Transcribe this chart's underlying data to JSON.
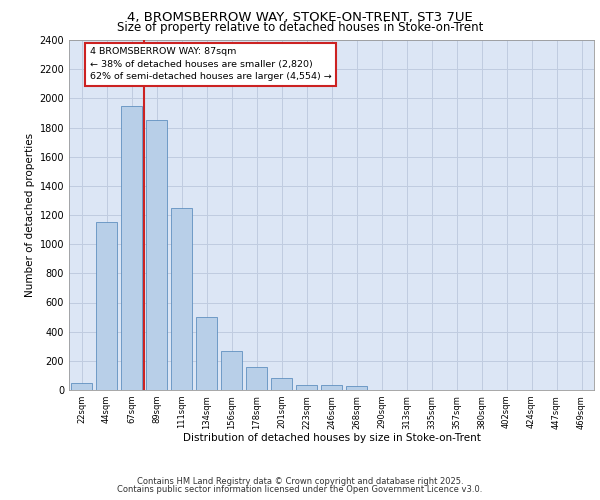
{
  "title_line1": "4, BROMSBERROW WAY, STOKE-ON-TRENT, ST3 7UE",
  "title_line2": "Size of property relative to detached houses in Stoke-on-Trent",
  "xlabel": "Distribution of detached houses by size in Stoke-on-Trent",
  "ylabel": "Number of detached properties",
  "categories": [
    "22sqm",
    "44sqm",
    "67sqm",
    "89sqm",
    "111sqm",
    "134sqm",
    "156sqm",
    "178sqm",
    "201sqm",
    "223sqm",
    "246sqm",
    "268sqm",
    "290sqm",
    "313sqm",
    "335sqm",
    "357sqm",
    "380sqm",
    "402sqm",
    "424sqm",
    "447sqm",
    "469sqm"
  ],
  "values": [
    50,
    1150,
    1950,
    1850,
    1250,
    500,
    270,
    160,
    80,
    35,
    35,
    30,
    0,
    0,
    0,
    0,
    0,
    0,
    0,
    0,
    0
  ],
  "bar_color": "#b8cfe8",
  "bar_edge_color": "#6090c0",
  "red_line_x": 2.5,
  "annotation_text": "4 BROMSBERROW WAY: 87sqm\n← 38% of detached houses are smaller (2,820)\n62% of semi-detached houses are larger (4,554) →",
  "annotation_box_color": "#ffffff",
  "annotation_border_color": "#cc2222",
  "ylim": [
    0,
    2400
  ],
  "yticks": [
    0,
    200,
    400,
    600,
    800,
    1000,
    1200,
    1400,
    1600,
    1800,
    2000,
    2200,
    2400
  ],
  "grid_color": "#c0cce0",
  "bg_color": "#dce6f5",
  "footer_line1": "Contains HM Land Registry data © Crown copyright and database right 2025.",
  "footer_line2": "Contains public sector information licensed under the Open Government Licence v3.0."
}
